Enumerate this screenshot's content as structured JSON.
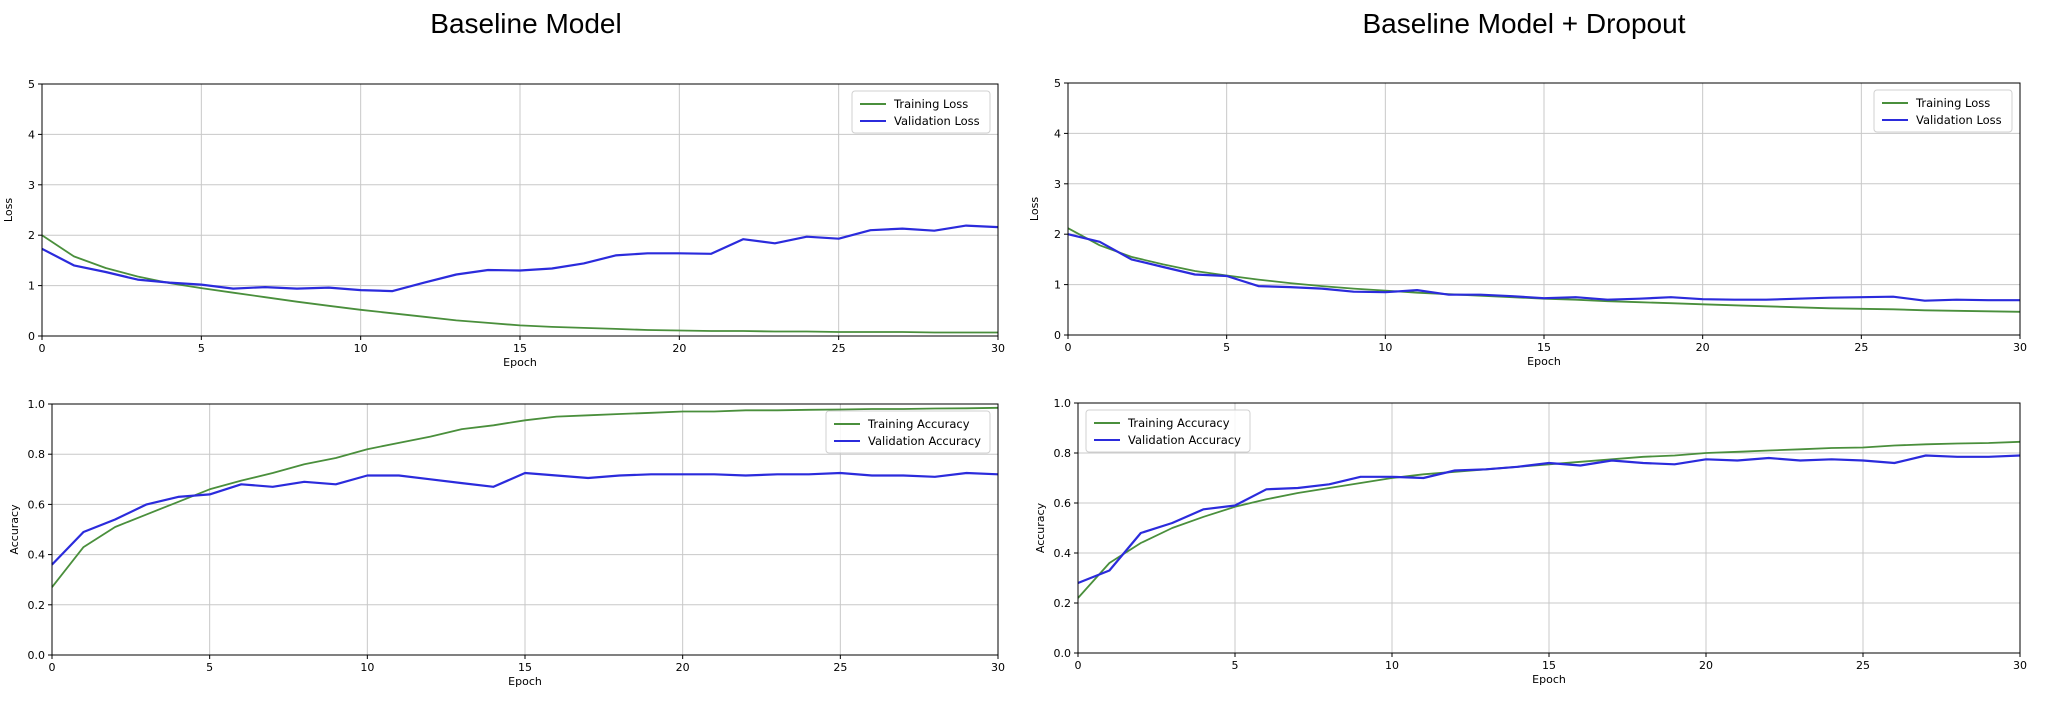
{
  "titles": {
    "left": "Baseline Model",
    "right": "Baseline Model + Dropout"
  },
  "colors": {
    "training": "#4a8f3c",
    "validation": "#2b2bdc",
    "grid": "#c8c8c8",
    "axis": "#000000"
  },
  "chart_data": [
    {
      "type": "line",
      "panel": "Baseline Model - loss",
      "xlabel": "Epoch",
      "ylabel": "Loss",
      "xlim": [
        0,
        30
      ],
      "ylim": [
        0,
        5
      ],
      "xticks": [
        0,
        5,
        10,
        15,
        20,
        25,
        30
      ],
      "yticks": [
        0,
        1,
        2,
        3,
        4,
        5
      ],
      "yticks_labels": [
        "0",
        "1",
        "2",
        "3",
        "4",
        "5"
      ],
      "grid": true,
      "legend_position": "top-right",
      "x": [
        0,
        1,
        2,
        3,
        4,
        5,
        6,
        7,
        8,
        9,
        10,
        11,
        12,
        13,
        14,
        15,
        16,
        17,
        18,
        19,
        20,
        21,
        22,
        23,
        24,
        25,
        26,
        27,
        28,
        29,
        30
      ],
      "series": [
        {
          "name": "Training Loss",
          "role": "training",
          "values": [
            2.0,
            1.58,
            1.35,
            1.18,
            1.05,
            0.95,
            0.86,
            0.77,
            0.68,
            0.6,
            0.52,
            0.45,
            0.38,
            0.31,
            0.26,
            0.21,
            0.18,
            0.16,
            0.14,
            0.12,
            0.11,
            0.1,
            0.1,
            0.09,
            0.09,
            0.08,
            0.08,
            0.08,
            0.07,
            0.07,
            0.07
          ]
        },
        {
          "name": "Validation Loss",
          "role": "validation",
          "values": [
            1.73,
            1.4,
            1.27,
            1.12,
            1.06,
            1.02,
            0.94,
            0.97,
            0.94,
            0.96,
            0.91,
            0.89,
            1.06,
            1.22,
            1.31,
            1.3,
            1.34,
            1.44,
            1.6,
            1.64,
            1.64,
            1.63,
            1.92,
            1.84,
            1.97,
            1.93,
            2.1,
            2.13,
            2.09,
            2.19,
            2.16
          ]
        }
      ]
    },
    {
      "type": "line",
      "panel": "Baseline Model - accuracy",
      "xlabel": "Epoch",
      "ylabel": "Accuracy",
      "xlim": [
        0,
        30
      ],
      "ylim": [
        0,
        1
      ],
      "xticks": [
        0,
        5,
        10,
        15,
        20,
        25,
        30
      ],
      "yticks": [
        0,
        0.2,
        0.4,
        0.6,
        0.8,
        1.0
      ],
      "yticks_labels": [
        "0.0",
        "0.2",
        "0.4",
        "0.6",
        "0.8",
        "1.0"
      ],
      "grid": true,
      "legend_position": "top-right",
      "x": [
        0,
        1,
        2,
        3,
        4,
        5,
        6,
        7,
        8,
        9,
        10,
        11,
        12,
        13,
        14,
        15,
        16,
        17,
        18,
        19,
        20,
        21,
        22,
        23,
        24,
        25,
        26,
        27,
        28,
        29,
        30
      ],
      "series": [
        {
          "name": "Training Accuracy",
          "role": "training",
          "values": [
            0.27,
            0.43,
            0.51,
            0.56,
            0.61,
            0.66,
            0.695,
            0.725,
            0.76,
            0.785,
            0.82,
            0.845,
            0.87,
            0.9,
            0.915,
            0.935,
            0.95,
            0.955,
            0.96,
            0.965,
            0.97,
            0.97,
            0.975,
            0.975,
            0.977,
            0.978,
            0.98,
            0.98,
            0.982,
            0.983,
            0.985
          ]
        },
        {
          "name": "Validation Accuracy",
          "role": "validation",
          "values": [
            0.36,
            0.49,
            0.54,
            0.6,
            0.63,
            0.64,
            0.68,
            0.67,
            0.69,
            0.68,
            0.715,
            0.715,
            0.7,
            0.685,
            0.67,
            0.725,
            0.715,
            0.705,
            0.715,
            0.72,
            0.72,
            0.72,
            0.715,
            0.72,
            0.72,
            0.725,
            0.715,
            0.715,
            0.71,
            0.725,
            0.72
          ]
        }
      ]
    },
    {
      "type": "line",
      "panel": "Baseline Model + Dropout - loss",
      "xlabel": "Epoch",
      "ylabel": "Loss",
      "xlim": [
        0,
        30
      ],
      "ylim": [
        0,
        5
      ],
      "xticks": [
        0,
        5,
        10,
        15,
        20,
        25,
        30
      ],
      "yticks": [
        0,
        1,
        2,
        3,
        4,
        5
      ],
      "yticks_labels": [
        "0",
        "1",
        "2",
        "3",
        "4",
        "5"
      ],
      "grid": true,
      "legend_position": "top-right",
      "x": [
        0,
        1,
        2,
        3,
        4,
        5,
        6,
        7,
        8,
        9,
        10,
        11,
        12,
        13,
        14,
        15,
        16,
        17,
        18,
        19,
        20,
        21,
        22,
        23,
        24,
        25,
        26,
        27,
        28,
        29,
        30
      ],
      "series": [
        {
          "name": "Training Loss",
          "role": "training",
          "values": [
            2.12,
            1.78,
            1.55,
            1.4,
            1.27,
            1.18,
            1.1,
            1.03,
            0.97,
            0.92,
            0.88,
            0.84,
            0.81,
            0.78,
            0.75,
            0.72,
            0.7,
            0.67,
            0.65,
            0.63,
            0.61,
            0.59,
            0.57,
            0.55,
            0.53,
            0.52,
            0.51,
            0.49,
            0.48,
            0.47,
            0.46
          ]
        },
        {
          "name": "Validation Loss",
          "role": "validation",
          "values": [
            2.0,
            1.85,
            1.5,
            1.35,
            1.2,
            1.17,
            0.97,
            0.95,
            0.92,
            0.86,
            0.85,
            0.89,
            0.8,
            0.8,
            0.77,
            0.73,
            0.75,
            0.7,
            0.72,
            0.75,
            0.71,
            0.7,
            0.7,
            0.72,
            0.74,
            0.75,
            0.76,
            0.68,
            0.7,
            0.69,
            0.69
          ]
        }
      ]
    },
    {
      "type": "line",
      "panel": "Baseline Model + Dropout - accuracy",
      "xlabel": "Epoch",
      "ylabel": "Accuracy",
      "xlim": [
        0,
        30
      ],
      "ylim": [
        0,
        1
      ],
      "xticks": [
        0,
        5,
        10,
        15,
        20,
        25,
        30
      ],
      "yticks": [
        0,
        0.2,
        0.4,
        0.6,
        0.8,
        1.0
      ],
      "yticks_labels": [
        "0.0",
        "0.2",
        "0.4",
        "0.6",
        "0.8",
        "1.0"
      ],
      "grid": true,
      "legend_position": "top-left",
      "x": [
        0,
        1,
        2,
        3,
        4,
        5,
        6,
        7,
        8,
        9,
        10,
        11,
        12,
        13,
        14,
        15,
        16,
        17,
        18,
        19,
        20,
        21,
        22,
        23,
        24,
        25,
        26,
        27,
        28,
        29,
        30
      ],
      "series": [
        {
          "name": "Training Accuracy",
          "role": "training",
          "values": [
            0.22,
            0.36,
            0.44,
            0.5,
            0.545,
            0.585,
            0.615,
            0.64,
            0.66,
            0.68,
            0.7,
            0.715,
            0.725,
            0.735,
            0.745,
            0.755,
            0.765,
            0.775,
            0.785,
            0.79,
            0.8,
            0.805,
            0.81,
            0.815,
            0.82,
            0.822,
            0.83,
            0.835,
            0.838,
            0.84,
            0.845
          ]
        },
        {
          "name": "Validation Accuracy",
          "role": "validation",
          "values": [
            0.28,
            0.33,
            0.48,
            0.52,
            0.575,
            0.59,
            0.655,
            0.66,
            0.675,
            0.705,
            0.705,
            0.7,
            0.73,
            0.735,
            0.745,
            0.76,
            0.75,
            0.77,
            0.76,
            0.755,
            0.775,
            0.77,
            0.78,
            0.77,
            0.775,
            0.77,
            0.76,
            0.79,
            0.785,
            0.785,
            0.79
          ]
        }
      ]
    }
  ]
}
